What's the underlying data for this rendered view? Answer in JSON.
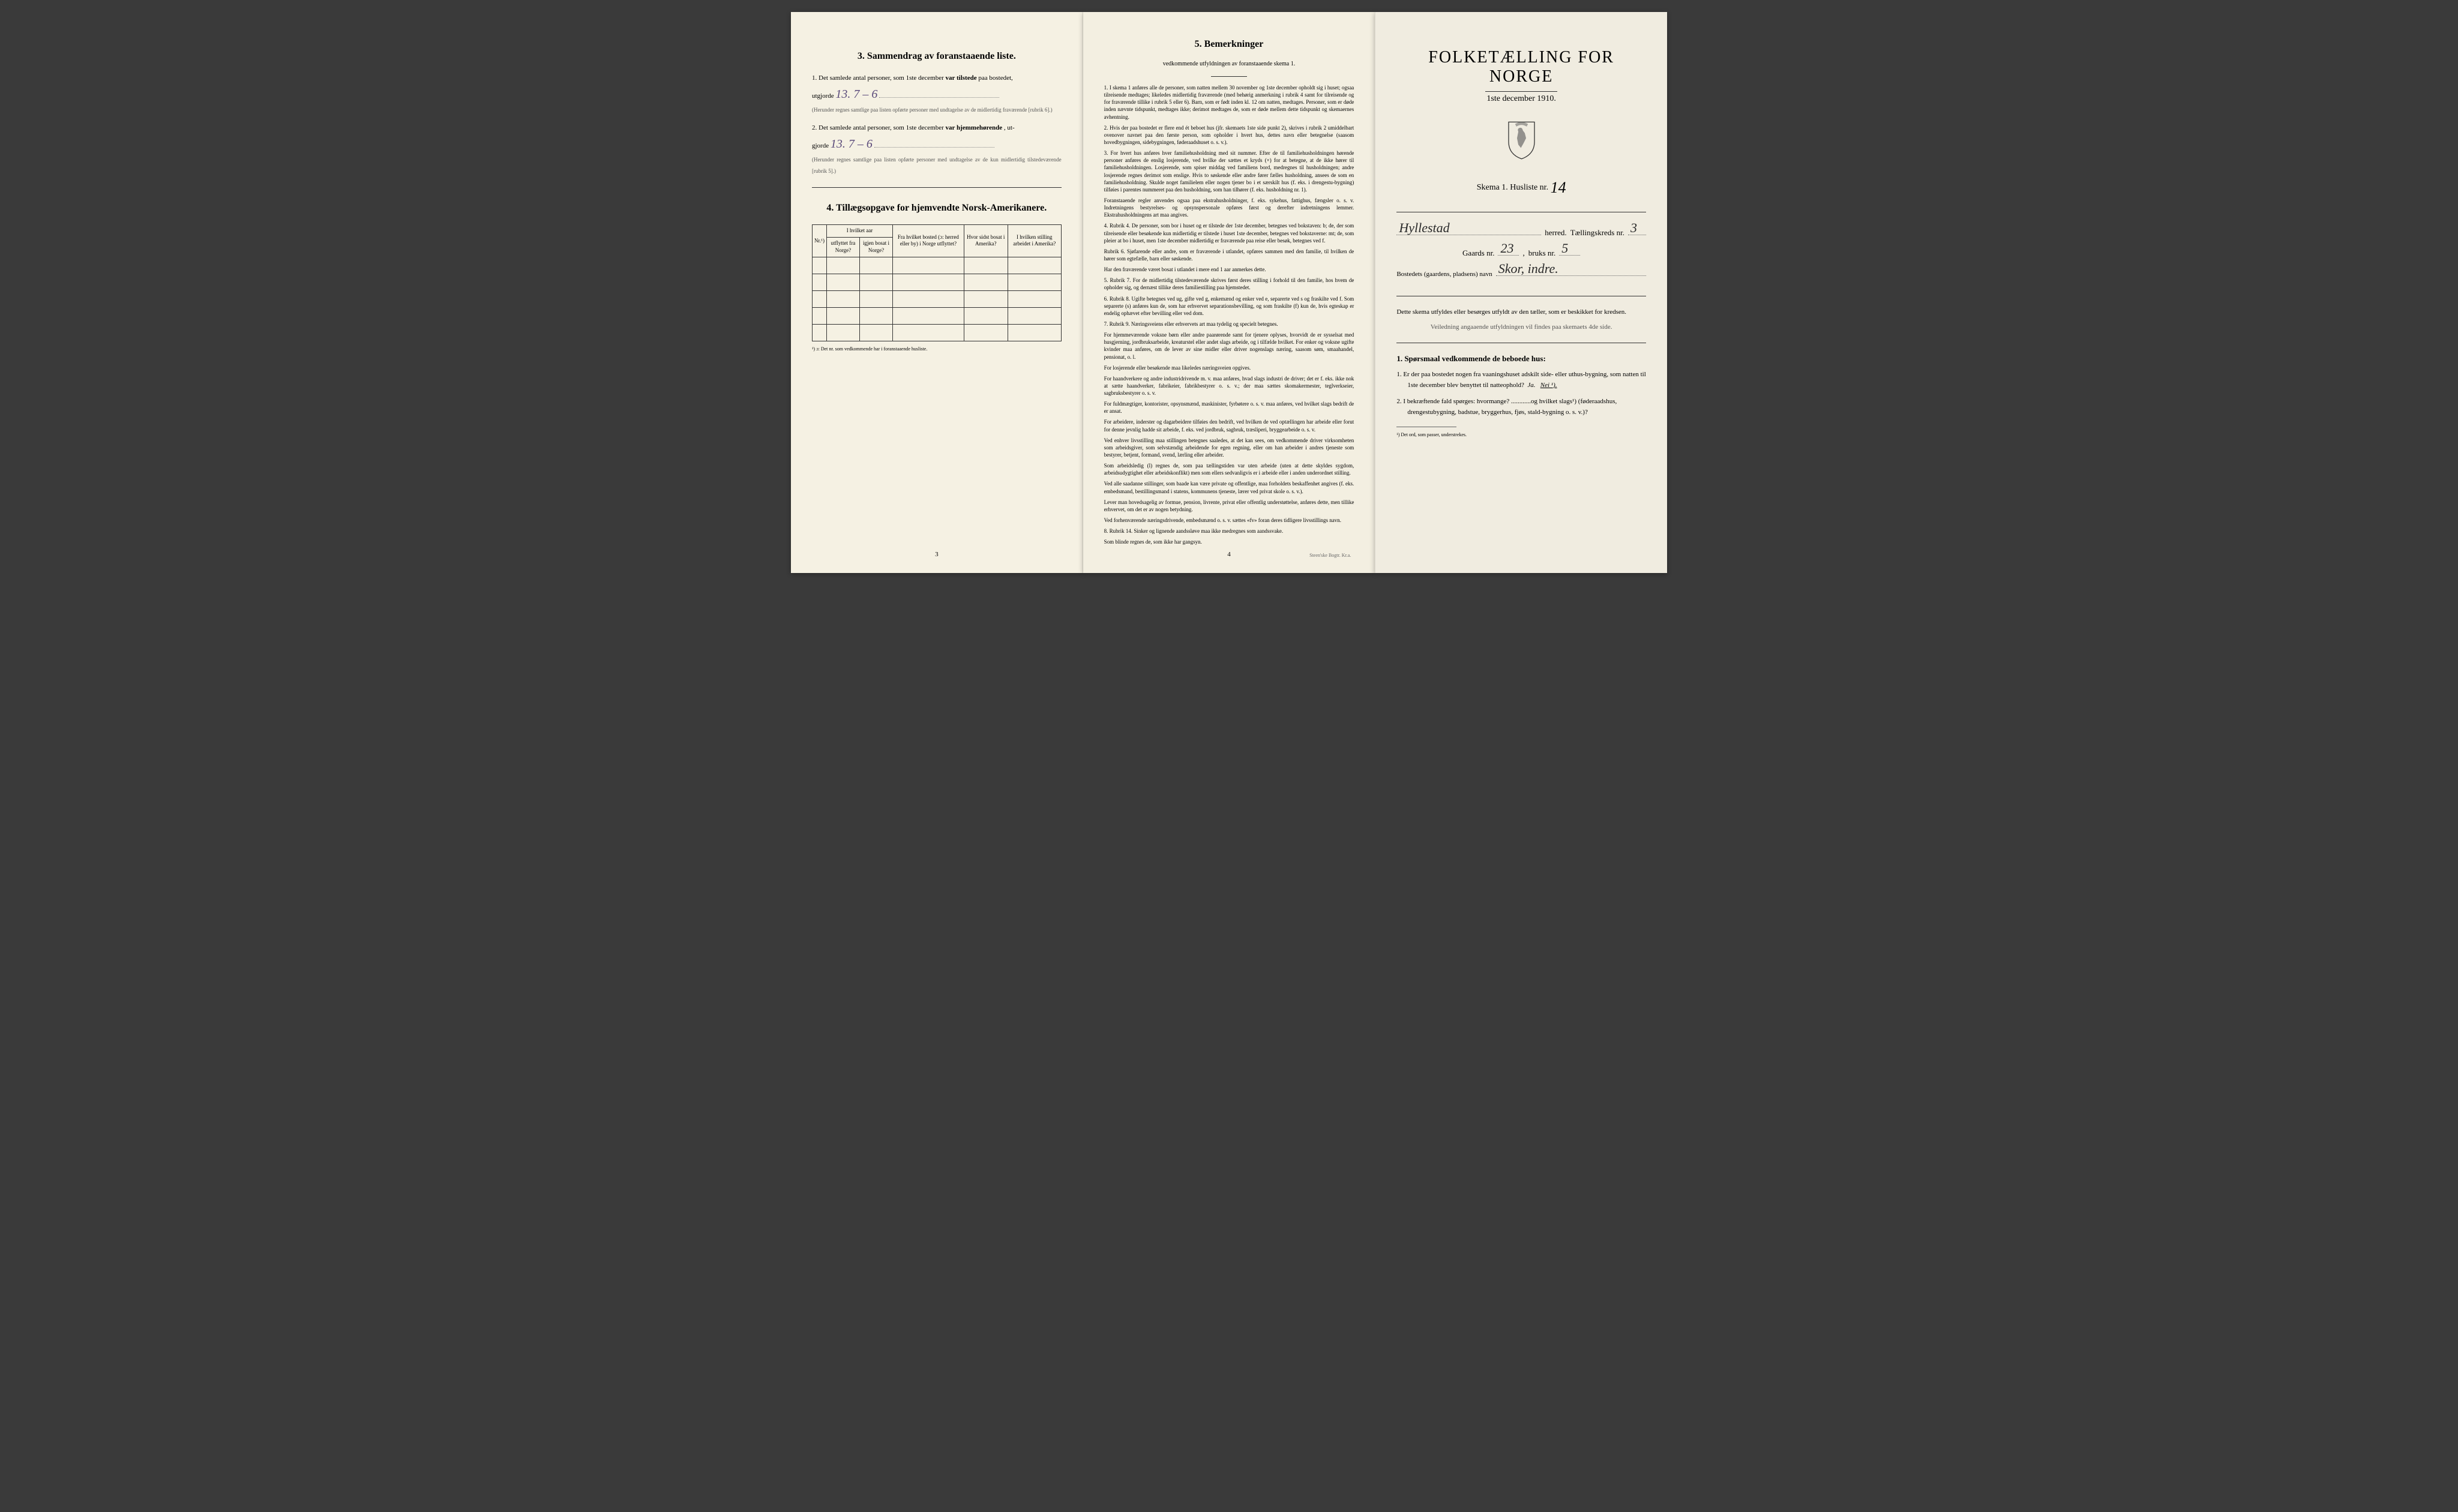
{
  "colors": {
    "page_bg": "#f4f0e4",
    "body_bg": "#3a3a3a",
    "handwriting": "#5a4a7a",
    "text": "#1a1a1a",
    "fine_text": "#555"
  },
  "page3": {
    "section_title": "3.   Sammendrag av foranstaaende liste.",
    "item1_prefix": "1. Det samlede antal personer, som 1ste december",
    "item1_bold": "var tilstede",
    "item1_suffix": "paa bostedet,",
    "item1_line2": "utgjorde",
    "item1_handwritten": "13.        7 – 6",
    "item1_note": "(Herunder regnes samtlige paa listen opførte personer med undtagelse av de midlertidig fraværende [rubrik 6].)",
    "item2_prefix": "2. Det samlede antal personer, som 1ste december",
    "item2_bold": "var hjemmehørende",
    "item2_suffix": ", ut-",
    "item2_line2": "gjorde",
    "item2_handwritten": "13.        7 – 6",
    "item2_note": "(Herunder regnes samtlige paa listen opførte personer med undtagelse av de kun midlertidig tilstedeværende [rubrik 5].)",
    "section4_title": "4.   Tillægsopgave for hjemvendte Norsk-Amerikanere.",
    "table": {
      "col1_header": "Nr.¹)",
      "col2_header_top": "I hvilket aar",
      "col2a": "utflyttet fra Norge?",
      "col2b": "igjen bosat i Norge?",
      "col3_header": "Fra hvilket bosted (ɔ: herred eller by) i Norge utflyttet?",
      "col4_header": "Hvor sidst bosat i Amerika?",
      "col5_header": "I hvilken stilling arbeidet i Amerika?",
      "empty_rows": 5
    },
    "table_footnote": "¹) ɔ: Det nr. som vedkommende har i foranstaaende husliste.",
    "page_num": "3"
  },
  "page4": {
    "section_title": "5.   Bemerkninger",
    "subtitle": "vedkommende utfyldningen av foranstaaende skema 1.",
    "remarks": [
      "1. I skema 1 anføres alle de personer, som natten mellem 30 november og 1ste december opholdt sig i huset; ogsaa tilreisende medtages; likeledes midlertidig fraværende (med behørig anmerkning i rubrik 4 samt for tilreisende og for fraværende tillike i rubrik 5 eller 6). Barn, som er født inden kl. 12 om natten, medtages. Personer, som er døde inden nævnte tidspunkt, medtages ikke; derimot medtages de, som er døde mellem dette tidspunkt og skemaernes avhentning.",
      "2. Hvis der paa bostedet er flere end ét beboet hus (jfr. skemaets 1ste side punkt 2), skrives i rubrik 2 umiddelbart ovenover navnet paa den første person, som opholder i hvert hus, dettes navn eller betegnelse (saasom hovedbygningen, sidebygningen, føderaadshuset o. s. v.).",
      "3. For hvert hus anføres hver familiehusholdning med sit nummer. Efter de til familiehusholdningen hørende personer anføres de enslig losjerende, ved hvilke der sættes et kryds (×) for at betegne, at de ikke hører til familiehusholdningen. Losjerende, som spiser middag ved familiens bord, medregnes til husholdningen; andre losjerende regnes derimot som enslige. Hvis to søskende eller andre fører fælles husholdning, ansees de som en familiehusholdning. Skulde noget familielem eller nogen tjener bo i et særskilt hus (f. eks. i drengestu-bygning) tilføies i parentes nummeret paa den husholdning, som han tilhører (f. eks. husholdning nr. 1).",
      "    Foranstaaende regler anvendes ogsaa paa ekstrahusholdninger, f. eks. sykehus, fattighus, fængsler o. s. v. Indretningens bestyrelses- og opsynspersonale opføres først og derefter indretningens lemmer. Ekstrahusholdningens art maa angives.",
      "4. Rubrik 4. De personer, som bor i huset og er tilstede der 1ste december, betegnes ved bokstaven: b; de, der som tilreisende eller besøkende kun midlertidig er tilstede i huset 1ste december, betegnes ved bokstaverne: mt; de, som pleier at bo i huset, men 1ste december midlertidig er fraværende paa reise eller besøk, betegnes ved f.",
      "    Rubrik 6. Sjøfarende eller andre, som er fraværende i utlandet, opføres sammen med den familie, til hvilken de hører som egtefælle, barn eller søskende.",
      "    Har den fraværende været bosat i utlandet i mere end 1 aar anmerkes dette.",
      "5. Rubrik 7. For de midlertidig tilstedeværende skrives først deres stilling i forhold til den familie, hos hvem de opholder sig, og dernæst tillike deres familiestilling paa hjemstedet.",
      "6. Rubrik 8. Ugifte betegnes ved ug, gifte ved g, enkemænd og enker ved e, separerte ved s og fraskilte ved f. Som separerte (s) anføres kun de, som har erhvervet separationsbevilling, og som fraskilte (f) kun de, hvis egteskap er endelig ophævet efter bevilling eller ved dom.",
      "7. Rubrik 9. Næringsveiens eller erhvervets art maa tydelig og specielt betegnes.",
      "    For hjemmeværende voksne børn eller andre paarørende samt for tjenere oplyses, hvorvidt de er sysselsat med husgjerning, jordbruksarbeide, kreaturstel eller andet slags arbeide, og i tilfælde hvilket. For enker og voksne ugifte kvinder maa anføres, om de lever av sine midler eller driver nogenslags næring, saasom søm, smaahandel, pensionat, o. l.",
      "    For losjerende eller besøkende maa likeledes næringsveien opgives.",
      "    For haandverkere og andre industridrivende m. v. maa anføres, hvad slags industri de driver; det er f. eks. ikke nok at sætte haandverker, fabrikeier, fabrikbestyrer o. s. v.; der maa sættes skomakermester, teglverkseier, sagbruksbestyrer o. s. v.",
      "    For fuldmægtiger, kontorister, opsynsmænd, maskinister, fyrbøtere o. s. v. maa anføres, ved hvilket slags bedrift de er ansat.",
      "    For arbeidere, inderster og dagarbeidere tilføies den bedrift, ved hvilken de ved optællingen har arbeide eller forut for denne jevnlig hadde sit arbeide, f. eks. ved jordbruk, sagbruk, træsliperi, bryggearbeide o. s. v.",
      "    Ved enhver livsstilling maa stillingen betegnes saaledes, at det kan sees, om vedkommende driver virksomheten som arbeidsgiver, som selvstændig arbeidende for egen regning, eller om han arbeider i andres tjeneste som bestyrer, betjent, formand, svend, lærling eller arbeider.",
      "    Som arbeidsledig (l) regnes de, som paa tællingstiden var uten arbeide (uten at dette skyldes sygdom, arbeidsudygtighet eller arbeidskonflikt) men som ellers sedvanligvis er i arbeide eller i anden underordnet stilling.",
      "    Ved alle saadanne stillinger, som baade kan være private og offentlige, maa forholdets beskaffenhet angives (f. eks. embedsmand, bestillingsmand i statens, kommunens tjeneste, lærer ved privat skole o. s. v.).",
      "    Lever man hovedsagelig av formue, pension, livrente, privat eller offentlig understøttelse, anføres dette, men tillike erhvervet, om det er av nogen betydning.",
      "    Ved forhenværende næringsdrivende, embedsmænd o. s. v. sættes «fv» foran deres tidligere livsstillings navn.",
      "8. Rubrik 14. Sinker og lignende aandssløve maa ikke medregnes som aandssvake.",
      "    Som blinde regnes de, som ikke har gangsyn."
    ],
    "page_num": "4",
    "printer": "Steen'ske Bogtr. Kr.a."
  },
  "page_right": {
    "title": "FOLKETÆLLING FOR NORGE",
    "date": "1ste december 1910.",
    "skema_label": "Skema 1.   Husliste nr.",
    "skema_value": "14",
    "herred_value": "Hyllestad",
    "herred_label": "herred.",
    "kreds_label": "Tællingskreds nr.",
    "kreds_value": "3",
    "gaard_label": "Gaards nr.",
    "gaard_value": "23",
    "bruk_label": "bruks nr.",
    "bruk_value": "5",
    "bosted_label": "Bostedets (gaardens, pladsens) navn",
    "bosted_value": "Skor, indre.",
    "instruction1": "Dette skema utfyldes eller besørges utfyldt av den tæller, som er beskikket for kredsen.",
    "instruction2": "Veiledning angaaende utfyldningen vil findes paa skemaets 4de side.",
    "q_heading": "1. Spørsmaal vedkommende de beboede hus:",
    "q1": "1.  Er der paa bostedet nogen fra vaaningshuset adskilt side- eller uthus-bygning, som natten til 1ste december blev benyttet til natteophold?",
    "q1_ja": "Ja.",
    "q1_nei": "Nei ¹).",
    "q2": "2.  I bekræftende fald spørges: hvormange? ............og hvilket slags¹) (føderaadshus, drengestubygning, badstue, bryggerhus, fjøs, stald-bygning o. s. v.)?",
    "footnote": "¹) Det ord, som passer, understrekes."
  }
}
